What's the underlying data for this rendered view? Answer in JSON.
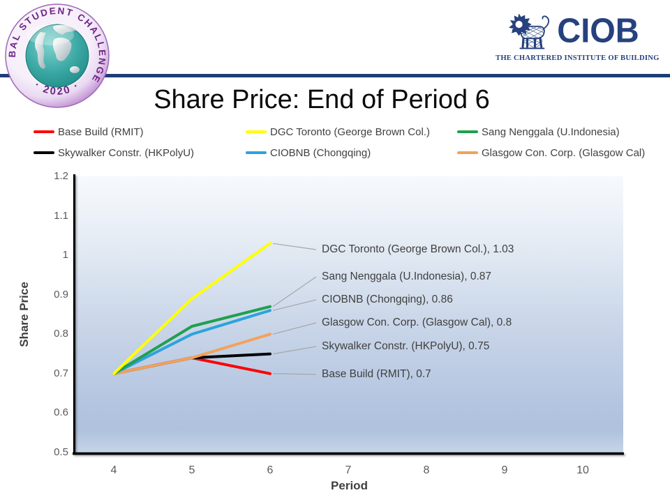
{
  "badge": {
    "ring_text": "GLOBAL STUDENT CHALLENGE",
    "year_text": "· 2020 ·",
    "purple": "#6E2585"
  },
  "ciob": {
    "acronym": "CIOB",
    "tagline": "THE CHARTERED INSTITUTE OF BUILDING",
    "navy": "#26417E"
  },
  "header_rule_color": "#1F3C74",
  "title": "Share Price: End of Period 6",
  "chart_data": {
    "type": "line",
    "title": "Share Price: End of Period 6",
    "xlabel": "Period",
    "ylabel": "Share Price",
    "x": [
      4,
      5,
      6
    ],
    "x_ticks": [
      4,
      5,
      6,
      7,
      8,
      9,
      10
    ],
    "y_ticks": [
      "1.2",
      "1.1",
      "1",
      "0.9",
      "0.8",
      "0.7",
      "0.6",
      "0.5"
    ],
    "xlim": [
      3.5,
      10.6
    ],
    "ylim": [
      0.5,
      1.2
    ],
    "grid": false,
    "legend_position": "top",
    "series": [
      {
        "name": "Base Build (RMIT)",
        "color": "#FE0000",
        "values": [
          0.7,
          0.74,
          0.7
        ],
        "callout": "Base Build (RMIT), 0.7"
      },
      {
        "name": "DGC Toronto (George Brown Col.)",
        "color": "#FFFF00",
        "values": [
          0.7,
          0.89,
          1.03
        ],
        "callout": "DGC Toronto (George Brown Col.), 1.03"
      },
      {
        "name": "Sang Nenggala (U.Indonesia)",
        "color": "#1FA050",
        "values": [
          0.7,
          0.82,
          0.87
        ],
        "callout": "Sang Nenggala (U.Indonesia), 0.87"
      },
      {
        "name": "Skywalker Constr. (HKPolyU)",
        "color": "#000000",
        "values": [
          0.7,
          0.74,
          0.75
        ],
        "callout": "Skywalker Constr. (HKPolyU), 0.75"
      },
      {
        "name": "CIOBNB (Chongqing)",
        "color": "#2CA3DC",
        "values": [
          0.7,
          0.8,
          0.86
        ],
        "callout": "CIOBNB (Chongqing), 0.86"
      },
      {
        "name": "Glasgow Con. Corp. (Glasgow Cal)",
        "color": "#F2A25C",
        "values": [
          0.7,
          0.74,
          0.8
        ],
        "callout": "Glasgow Con. Corp. (Glasgow Cal), 0.8"
      }
    ]
  }
}
